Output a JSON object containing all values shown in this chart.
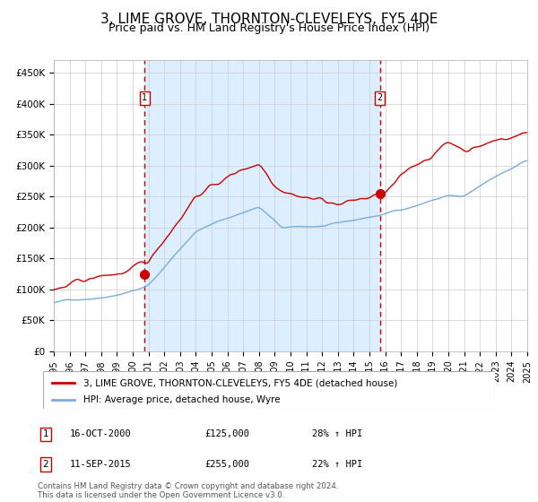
{
  "title": "3, LIME GROVE, THORNTON-CLEVELEYS, FY5 4DE",
  "subtitle": "Price paid vs. HM Land Registry's House Price Index (HPI)",
  "title_fontsize": 11,
  "subtitle_fontsize": 9,
  "legend1": "3, LIME GROVE, THORNTON-CLEVELEYS, FY5 4DE (detached house)",
  "legend2": "HPI: Average price, detached house, Wyre",
  "event1_date": "16-OCT-2000",
  "event1_price": 125000,
  "event1_hpi": "28% ↑ HPI",
  "event2_date": "11-SEP-2015",
  "event2_price": 255000,
  "event2_hpi": "22% ↑ HPI",
  "red_color": "#cc0000",
  "blue_color": "#7aaddc",
  "bg_color": "#ddeeff",
  "ylim": [
    0,
    470000
  ],
  "footnote": "Contains HM Land Registry data © Crown copyright and database right 2024.\nThis data is licensed under the Open Government Licence v3.0."
}
